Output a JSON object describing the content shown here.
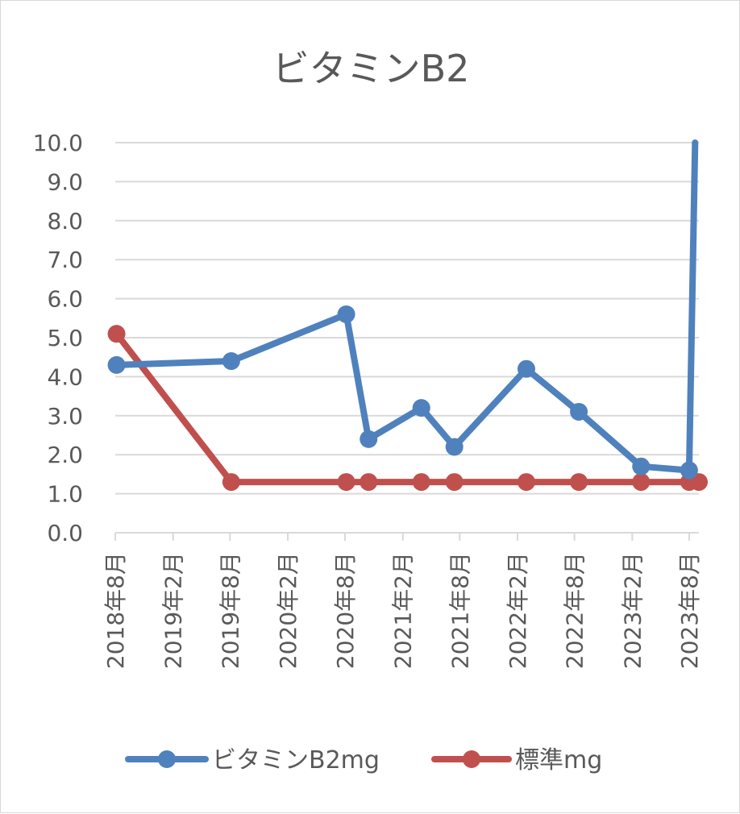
{
  "chart_data": {
    "type": "line",
    "title": "ビタミンB2",
    "xlabel": "",
    "ylabel": "",
    "ylim": [
      0,
      10
    ],
    "ytick_labels": [
      "0.0",
      "1.0",
      "2.0",
      "3.0",
      "4.0",
      "5.0",
      "6.0",
      "7.0",
      "8.0",
      "9.0",
      "10.0"
    ],
    "xtick_labels": [
      "2018年8月",
      "2019年2月",
      "2019年8月",
      "2020年2月",
      "2020年8月",
      "2021年2月",
      "2021年8月",
      "2022年2月",
      "2022年8月",
      "2023年2月",
      "2023年8月"
    ],
    "xlim": [
      "2018-08-01",
      "2023-09-01"
    ],
    "grid": true,
    "legend_position": "bottom",
    "x": [
      "2018-08-05",
      "2019-08-05",
      "2020-08-05",
      "2020-10-15",
      "2021-04-01",
      "2021-07-15",
      "2022-03-01",
      "2022-08-15",
      "2023-03-01",
      "2023-08-01",
      "2023-09-01"
    ],
    "series": [
      {
        "name": "ビタミンB2mg",
        "color": "#4f81bd",
        "values": [
          4.3,
          4.4,
          5.6,
          2.4,
          3.2,
          2.2,
          4.2,
          3.1,
          1.7,
          1.6,
          null
        ],
        "extra_point": {
          "x": "2023-08-20",
          "y": 10.0
        }
      },
      {
        "name": "標準mg",
        "color": "#c0504d",
        "values": [
          5.1,
          1.3,
          1.3,
          1.3,
          1.3,
          1.3,
          1.3,
          1.3,
          1.3,
          1.3,
          1.3
        ]
      }
    ]
  }
}
